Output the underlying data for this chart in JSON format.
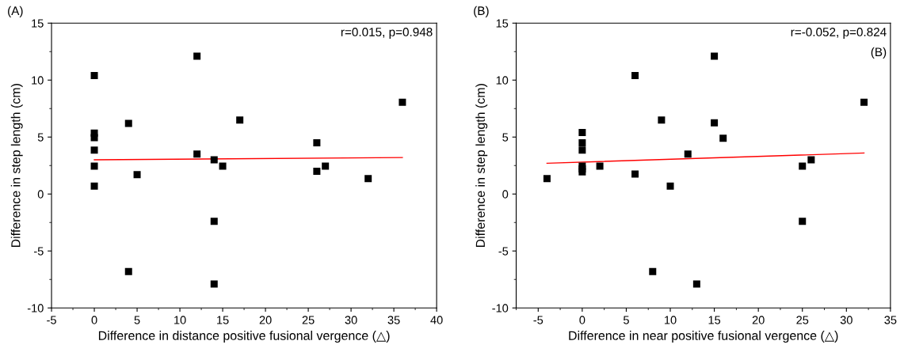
{
  "chart_data": [
    {
      "type": "scatter",
      "xlabel": "Difference in distance positive fusional vergence (△)",
      "ylabel": "Difference in step length (cm)",
      "annotations": [
        "(A)",
        "r=0.015, p=0.948"
      ],
      "xlim": [
        -5,
        40
      ],
      "xticks": [
        -5,
        0,
        5,
        10,
        15,
        20,
        25,
        30,
        35,
        40
      ],
      "ylim": [
        -10,
        15
      ],
      "yticks": [
        -10,
        -5,
        0,
        5,
        10,
        15
      ],
      "grid": false,
      "series": [
        {
          "color": "#000000",
          "marker": "square",
          "x": [
            0,
            0,
            0,
            0,
            0,
            0,
            4,
            4,
            5,
            12,
            12,
            14,
            14,
            14,
            15,
            17,
            26,
            26,
            27,
            32,
            36
          ],
          "values": [
            10.4,
            5.35,
            4.95,
            3.85,
            2.45,
            0.7,
            6.2,
            -6.8,
            1.7,
            12.1,
            3.5,
            3.0,
            -2.4,
            -7.9,
            2.45,
            6.5,
            4.5,
            2.0,
            2.45,
            1.35,
            8.05
          ]
        },
        {
          "type": "line",
          "color": "#ff0000",
          "marker": "none",
          "x": [
            0,
            36
          ],
          "values": [
            3.0,
            3.2
          ]
        }
      ]
    },
    {
      "type": "scatter",
      "xlabel": "Difference in near positive fusional vergence (△)",
      "ylabel": "Difference in step length (cm)",
      "annotations": [
        "(B)",
        "r=-0.052, p=0.824",
        "(B)"
      ],
      "xlim": [
        -7.5,
        35
      ],
      "xticks": [
        -5,
        0,
        5,
        10,
        15,
        20,
        25,
        30,
        35
      ],
      "ylim": [
        -10,
        15
      ],
      "yticks": [
        -10,
        -5,
        0,
        5,
        10,
        15
      ],
      "grid": false,
      "series": [
        {
          "color": "#000000",
          "marker": "square",
          "x": [
            -4,
            0,
            0,
            0,
            0,
            0,
            0,
            2,
            6,
            6,
            8,
            9,
            10,
            12,
            13,
            15,
            15,
            16,
            25,
            25,
            26,
            32
          ],
          "values": [
            1.35,
            5.4,
            4.5,
            3.85,
            2.45,
            2.2,
            1.95,
            2.45,
            10.4,
            1.75,
            -6.8,
            6.5,
            0.7,
            3.5,
            -7.9,
            12.1,
            6.25,
            4.9,
            2.45,
            -2.4,
            3.0,
            8.05
          ]
        },
        {
          "type": "line",
          "color": "#ff0000",
          "marker": "none",
          "x": [
            -4,
            32
          ],
          "values": [
            2.7,
            3.6
          ]
        }
      ]
    }
  ]
}
